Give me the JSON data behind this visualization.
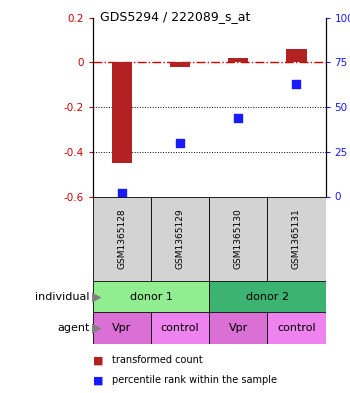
{
  "title": "GDS5294 / 222089_s_at",
  "samples": [
    "GSM1365128",
    "GSM1365129",
    "GSM1365130",
    "GSM1365131"
  ],
  "bar_values": [
    -0.45,
    -0.02,
    0.02,
    0.06
  ],
  "scatter_values": [
    2.0,
    30.0,
    44.0,
    63.0
  ],
  "ylim_left": [
    -0.6,
    0.2
  ],
  "ylim_right": [
    0,
    100
  ],
  "yticks_left": [
    0.2,
    0.0,
    -0.2,
    -0.4,
    -0.6
  ],
  "yticks_right": [
    100,
    75,
    50,
    25,
    0
  ],
  "ytick_labels_left": [
    "0.2",
    "0",
    "-0.2",
    "-0.4",
    "-0.6"
  ],
  "ytick_labels_right": [
    "100%",
    "75",
    "50",
    "25",
    "0"
  ],
  "bar_color": "#b22222",
  "scatter_color": "#1a1aff",
  "hline_color": "#cc0000",
  "hline_style": "-.",
  "grid_color": "#000000",
  "grid_style": ":",
  "grid_levels": [
    -0.2,
    -0.4
  ],
  "indiv_colors": [
    "#90ee90",
    "#3cb371"
  ],
  "agent_colors_list": [
    "#da70d6",
    "#ee82ee",
    "#da70d6",
    "#ee82ee"
  ],
  "legend_bar_label": "transformed count",
  "legend_scatter_label": "percentile rank within the sample",
  "label_individual": "individual",
  "label_agent": "agent",
  "sample_box_color": "#d3d3d3",
  "background_color": "#ffffff"
}
